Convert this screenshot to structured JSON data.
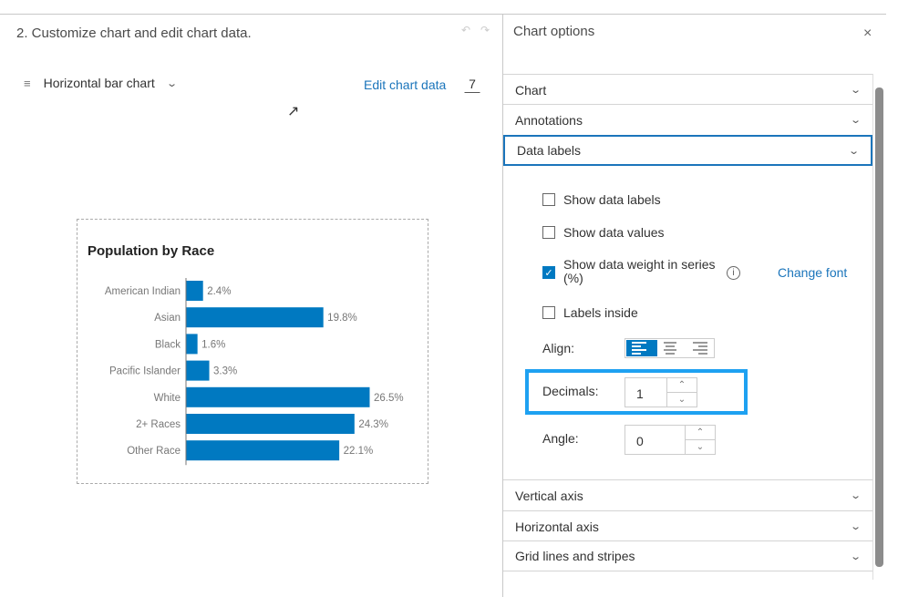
{
  "left": {
    "title": "2. Customize chart and edit chart data.",
    "chart_type": "Horizontal bar chart",
    "edit_link": "Edit chart data",
    "data_count": "7"
  },
  "right": {
    "title": "Chart options",
    "sections": [
      "Chart",
      "Annotations",
      "Data labels",
      "Vertical axis",
      "Horizontal axis",
      "Grid lines and stripes"
    ],
    "data_labels": {
      "show_labels": "Show data labels",
      "show_values": "Show data values",
      "show_weight": "Show data weight in series (%)",
      "change_font": "Change font",
      "labels_inside": "Labels inside",
      "align_label": "Align:",
      "decimals_label": "Decimals:",
      "decimals_value": "1",
      "angle_label": "Angle:",
      "angle_value": "0",
      "checked": {
        "show_labels": false,
        "show_values": false,
        "show_weight": true,
        "labels_inside": false
      },
      "align": "left"
    }
  },
  "colors": {
    "bar": "#0079c1",
    "accent": "#1b75bb",
    "highlight": "#1ea1f1"
  },
  "chart_data": {
    "type": "bar",
    "orientation": "horizontal",
    "title": "Population by Race",
    "categories": [
      "American Indian",
      "Asian",
      "Black",
      "Pacific Islander",
      "White",
      "2+ Races",
      "Other Race"
    ],
    "values": [
      2.4,
      19.8,
      1.6,
      3.3,
      26.5,
      24.3,
      22.1
    ],
    "labels": [
      "2.4%",
      "19.8%",
      "1.6%",
      "3.3%",
      "26.5%",
      "24.3%",
      "22.1%"
    ],
    "grid": false
  }
}
